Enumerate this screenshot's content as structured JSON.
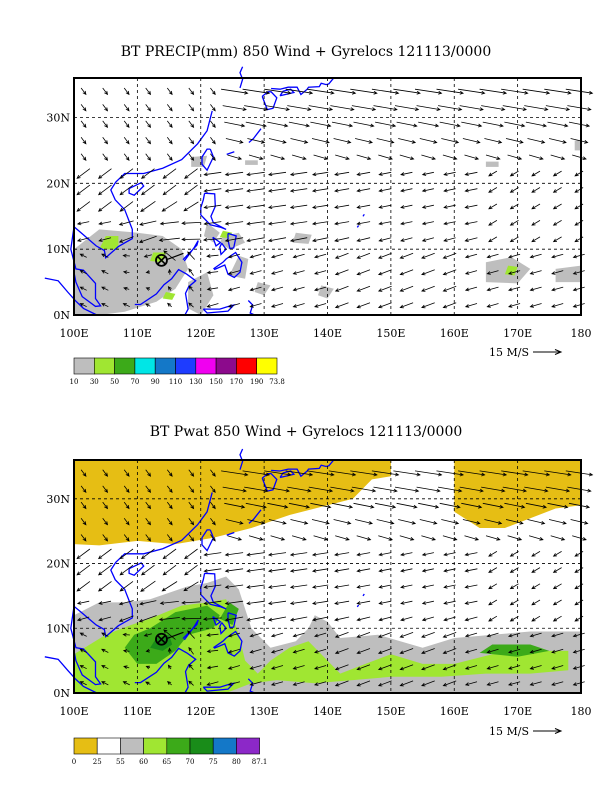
{
  "panels": [
    {
      "title": "BT PRECIP(mm) 850 Wind + Gyrelocs 121113/0000",
      "x_ticks": [
        "100E",
        "110E",
        "120E",
        "130E",
        "140E",
        "150E",
        "160E",
        "170E",
        "180"
      ],
      "y_ticks": [
        "0N",
        "10N",
        "20N",
        "30N"
      ],
      "vector_scale": "15 M/S",
      "legend_colors": [
        "#bebebe",
        "#a0e632",
        "#3caa19",
        "#00e6e6",
        "#1478c8",
        "#1e3cff",
        "#f000f0",
        "#8c0a8c",
        "#ff0000",
        "#ffff00"
      ],
      "legend_labels": [
        "10",
        "30",
        "50",
        "70",
        "90",
        "110",
        "130",
        "150",
        "170",
        "190",
        "73.8"
      ]
    },
    {
      "title": "BT Pwat 850 Wind + Gyrelocs 121113/0000",
      "x_ticks": [
        "100E",
        "110E",
        "120E",
        "130E",
        "140E",
        "150E",
        "160E",
        "170E",
        "180"
      ],
      "y_ticks": [
        "0N",
        "10N",
        "20N",
        "30N"
      ],
      "vector_scale": "15 M/S",
      "legend_colors": [
        "#e6be14",
        "#ffffff",
        "#bebebe",
        "#a0e632",
        "#3caa19",
        "#198c19",
        "#1478c8",
        "#8c28c8"
      ],
      "legend_labels": [
        "0",
        "25",
        "55",
        "60",
        "65",
        "70",
        "75",
        "80",
        "87.1"
      ]
    }
  ]
}
